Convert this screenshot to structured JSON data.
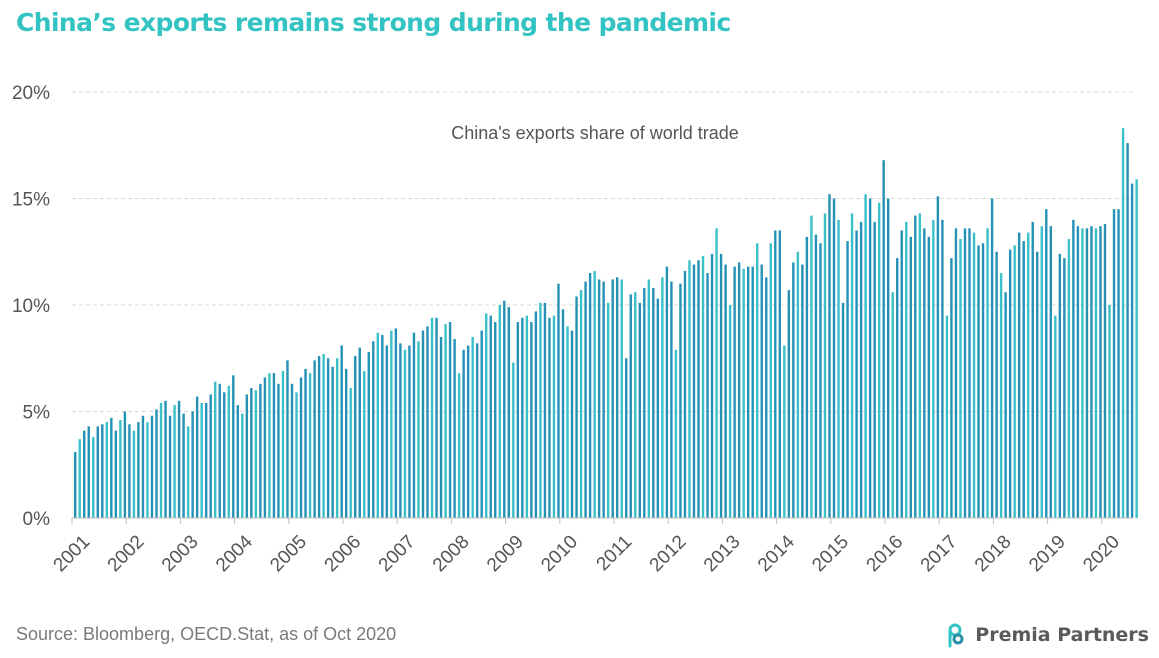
{
  "header": {
    "title": "China’s exports remains strong during the pandemic"
  },
  "footer": {
    "source": "Source: Bloomberg, OECD.Stat, as of Oct 2020",
    "brand_name": "Premia Partners"
  },
  "colors": {
    "title": "#34c3c3",
    "bar_dark": "#2591b5",
    "bar_light": "#39c0c8",
    "grid": "#d9d9d9",
    "axis": "#bfbfbf"
  },
  "chart_data": {
    "type": "bar",
    "title": "China's exports share of world trade",
    "x_start": "2001-01",
    "x_end": "2020-08",
    "x_tick_labels": [
      "2001",
      "2002",
      "2003",
      "2004",
      "2005",
      "2006",
      "2007",
      "2008",
      "2009",
      "2010",
      "2011",
      "2012",
      "2013",
      "2014",
      "2015",
      "2016",
      "2017",
      "2018",
      "2019",
      "2020"
    ],
    "y_tick_labels": [
      "0%",
      "5%",
      "10%",
      "15%",
      "20%"
    ],
    "ylim": [
      0,
      20
    ],
    "yunit": "%",
    "grid": true,
    "values": [
      3.1,
      3.7,
      4.1,
      4.3,
      3.8,
      4.3,
      4.4,
      4.5,
      4.7,
      4.1,
      4.6,
      5.0,
      4.4,
      4.1,
      4.5,
      4.8,
      4.5,
      4.8,
      5.1,
      5.4,
      5.5,
      4.8,
      5.3,
      5.5,
      4.9,
      4.3,
      5.0,
      5.7,
      5.4,
      5.4,
      5.8,
      6.4,
      6.3,
      5.9,
      6.2,
      6.7,
      5.3,
      4.9,
      5.8,
      6.1,
      6.0,
      6.3,
      6.6,
      6.8,
      6.8,
      6.3,
      6.9,
      7.4,
      6.3,
      5.9,
      6.6,
      7.0,
      6.8,
      7.4,
      7.6,
      7.7,
      7.5,
      7.1,
      7.5,
      8.1,
      7.0,
      6.1,
      7.6,
      8.0,
      6.9,
      7.8,
      8.3,
      8.7,
      8.6,
      8.1,
      8.8,
      8.9,
      8.2,
      7.9,
      8.1,
      8.7,
      8.3,
      8.8,
      9.0,
      9.4,
      9.4,
      8.5,
      9.1,
      9.2,
      8.4,
      6.8,
      7.9,
      8.1,
      8.5,
      8.2,
      8.8,
      9.6,
      9.5,
      9.2,
      10.0,
      10.2,
      9.9,
      7.3,
      9.2,
      9.4,
      9.5,
      9.2,
      9.7,
      10.1,
      10.1,
      9.4,
      9.5,
      11.0,
      9.8,
      9.0,
      8.8,
      10.4,
      10.7,
      11.1,
      11.5,
      11.6,
      11.2,
      11.1,
      10.1,
      11.2,
      11.3,
      11.2,
      7.5,
      10.5,
      10.6,
      10.1,
      10.8,
      11.2,
      10.8,
      10.3,
      11.3,
      11.8,
      11.1,
      7.9,
      11.0,
      11.6,
      12.1,
      11.9,
      12.1,
      12.3,
      11.5,
      12.4,
      13.6,
      12.4,
      11.9,
      10.0,
      11.8,
      12.0,
      11.7,
      11.8,
      11.8,
      12.9,
      11.9,
      11.3,
      12.9,
      13.5,
      13.5,
      8.1,
      10.7,
      12.0,
      12.5,
      11.9,
      13.2,
      14.2,
      13.3,
      12.9,
      14.3,
      15.2,
      15.0,
      14.0,
      10.1,
      13.0,
      14.3,
      13.5,
      13.9,
      15.2,
      15.0,
      13.9,
      14.8,
      16.8,
      15.0,
      10.6,
      12.2,
      13.5,
      13.9,
      13.2,
      14.2,
      14.3,
      13.6,
      13.2,
      14.0,
      15.1,
      14.0,
      9.5,
      12.2,
      13.6,
      13.1,
      13.6,
      13.6,
      13.4,
      12.8,
      12.9,
      13.6,
      15.0,
      12.5,
      11.5,
      10.6,
      12.6,
      12.8,
      13.4,
      13.0,
      13.4,
      13.9,
      12.5,
      13.7,
      14.5,
      13.7,
      9.5,
      12.4,
      12.2,
      13.1,
      14.0,
      13.7,
      13.6,
      13.6,
      13.7,
      13.6,
      13.7,
      13.8,
      10.0,
      14.5,
      14.5,
      18.3,
      17.6,
      15.7,
      15.9
    ]
  }
}
